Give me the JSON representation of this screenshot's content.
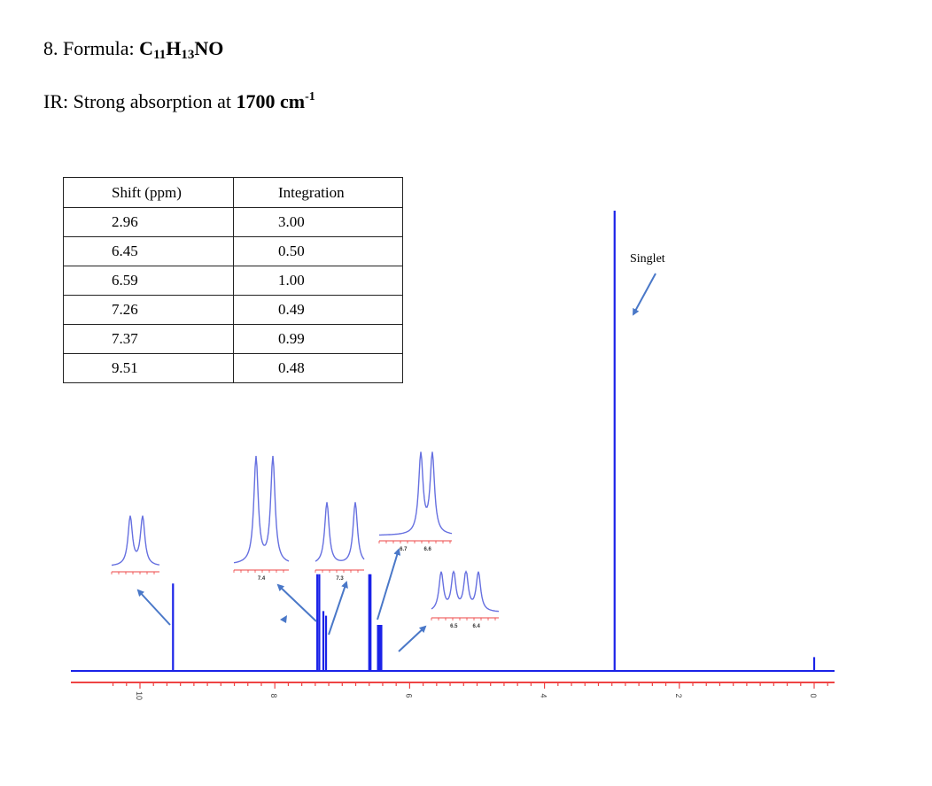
{
  "header": {
    "formula_prefix": "8. Formula:",
    "formula_C": "C",
    "formula_C_sub": "11",
    "formula_H": "H",
    "formula_H_sub": "13",
    "formula_rest": "NO",
    "ir_prefix": "IR: Strong absorption at",
    "ir_value": "1700 cm",
    "ir_sup": "-1"
  },
  "table": {
    "headers": [
      "Shift (ppm)",
      "Integration"
    ],
    "rows": [
      [
        "2.96",
        "3.00"
      ],
      [
        "6.45",
        "0.50"
      ],
      [
        "6.59",
        "1.00"
      ],
      [
        "7.26",
        "0.49"
      ],
      [
        "7.37",
        "0.99"
      ],
      [
        "9.51",
        "0.48"
      ]
    ]
  },
  "annotation": "Singlet",
  "colors": {
    "spectrum": "#1a22e8",
    "axis": "#ee4444",
    "arrow": "#4a78c8",
    "inset": "#6670e0"
  },
  "chart_data": {
    "type": "line",
    "xlabel": "",
    "ylabel": "",
    "xlim": [
      10.5,
      -0.3
    ],
    "x_reversed": true,
    "ticks": [
      10,
      8,
      6,
      4,
      2,
      0
    ],
    "peaks": [
      {
        "shift": 9.51,
        "height": 0.19
      },
      {
        "shift": 7.37,
        "height": 0.21
      },
      {
        "shift": 7.34,
        "height": 0.21
      },
      {
        "shift": 7.28,
        "height": 0.13
      },
      {
        "shift": 7.24,
        "height": 0.12
      },
      {
        "shift": 6.6,
        "height": 0.21
      },
      {
        "shift": 6.58,
        "height": 0.21
      },
      {
        "shift": 6.47,
        "height": 0.1
      },
      {
        "shift": 6.45,
        "height": 0.1
      },
      {
        "shift": 6.43,
        "height": 0.1
      },
      {
        "shift": 6.42,
        "height": 0.1
      },
      {
        "shift": 2.96,
        "height": 1.0
      },
      {
        "shift": 0.0,
        "height": 0.03
      }
    ],
    "insets": [
      {
        "name": "9.5 region",
        "tick_labels": []
      },
      {
        "name": "7.4 region",
        "tick_labels": [
          "7.4"
        ]
      },
      {
        "name": "7.3 region",
        "tick_labels": [
          "7.3"
        ]
      },
      {
        "name": "6.6 region",
        "tick_labels": [
          "6.7",
          "6.6"
        ]
      },
      {
        "name": "6.4 region",
        "tick_labels": [
          "6.5",
          "6.4"
        ]
      }
    ]
  }
}
